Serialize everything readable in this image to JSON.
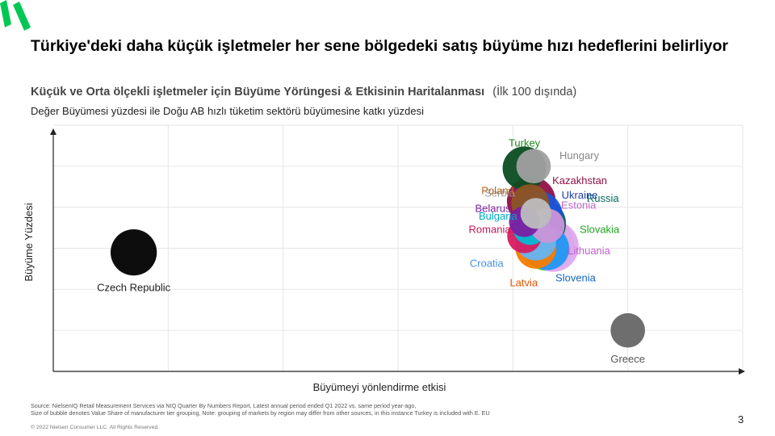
{
  "slide": {
    "title": "Türkiye'deki daha küçük işletmeler her sene bölgedeki satış büyüme hızı hedeflerini belirliyor",
    "subtitle_main": "Küçük ve Orta ölçekli işletmeler için Büyüme Yörüngesi & Etkisinin Haritalanması",
    "subtitle_note": "(İlk 100 dışında)",
    "description": "Değer Büyümesi yüzdesi ile Doğu AB hızlı tüketim sektörü büyümesine katkı yüzdesi",
    "source_line1": "Source: NielsenIQ Retail Measurement Services via NIQ Quarter By Numbers Report, Latest annual period ended Q1 2022 vs. same period year-ago,",
    "source_line2": "Size of bubble denotes Value Share of manufacturer tier grouping, Note: grouping of markets by region may differ from other sources, in this instance Turkey is included with E. EU",
    "copyright": "© 2022 Nielsen Consumer LLC. All Rights Reserved.",
    "page_number": "3",
    "logo_color": "#00c853"
  },
  "chart_data": {
    "type": "scatter",
    "xlabel": "Büyümeyi yönlendirme etkisi",
    "ylabel": "Büyüme Yüzdesi",
    "xlim": [
      0,
      6
    ],
    "ylim": [
      0,
      6
    ],
    "grid": true,
    "legend": "none",
    "points": [
      {
        "name": "Czech Republic",
        "x": 0.7,
        "y": 2.9,
        "size": 4.5,
        "color": "#000000",
        "label_color": "#222222"
      },
      {
        "name": "Greece",
        "x": 5.0,
        "y": 1.0,
        "size": 2.5,
        "color": "#666666",
        "label_color": "#555555"
      },
      {
        "name": "Latvia",
        "x": 4.2,
        "y": 3.0,
        "size": 3.5,
        "color": "#f57c00",
        "label_color": "#e65100"
      },
      {
        "name": "Lithuania",
        "x": 4.35,
        "y": 3.05,
        "size": 5.5,
        "color": "#e0a8f0",
        "label_color": "#c060d0"
      },
      {
        "name": "Slovakia",
        "x": 4.3,
        "y": 3.1,
        "size": 6.0,
        "color": "#4cd44c",
        "label_color": "#1fa41f"
      },
      {
        "name": "Romania",
        "x": 4.1,
        "y": 3.3,
        "size": 2.5,
        "color": "#d81b60",
        "label_color": "#c2185b"
      },
      {
        "name": "Croatia",
        "x": 4.2,
        "y": 3.2,
        "size": 3.5,
        "color": "#64b5f6",
        "label_color": "#4a90e2"
      },
      {
        "name": "Bulgaria",
        "x": 4.15,
        "y": 3.5,
        "size": 2.5,
        "color": "#00bcd4",
        "label_color": "#00acc1"
      },
      {
        "name": "Belarus",
        "x": 4.1,
        "y": 3.65,
        "size": 2.0,
        "color": "#7b1fa2",
        "label_color": "#7b1fa2"
      },
      {
        "name": "Estonia",
        "x": 4.3,
        "y": 3.55,
        "size": 2.5,
        "color": "#ce93d8",
        "label_color": "#ba68c8"
      },
      {
        "name": "Serbia",
        "x": 4.2,
        "y": 3.85,
        "size": 2.0,
        "color": "#bdbdbd",
        "label_color": "#9e9e9e"
      },
      {
        "name": "Poland",
        "x": 4.15,
        "y": 4.1,
        "size": 3.0,
        "color": "#8d5524",
        "label_color": "#b5651d"
      },
      {
        "name": "Slovenia",
        "x": 4.3,
        "y": 3.0,
        "size": 4.0,
        "color": "#2196f3",
        "label_color": "#1565c0"
      },
      {
        "name": "Kazakhstan",
        "x": 4.16,
        "y": 4.15,
        "size": 5.0,
        "color": "#8e1045",
        "label_color": "#8e1045"
      },
      {
        "name": "Russia",
        "x": 4.25,
        "y": 3.6,
        "size": 5.0,
        "color": "#006064",
        "label_color": "#00695c"
      },
      {
        "name": "Ukraine",
        "x": 4.22,
        "y": 3.8,
        "size": 5.0,
        "color": "#1a53d9",
        "label_color": "#1a3fa8"
      },
      {
        "name": "Hungary",
        "x": 4.18,
        "y": 5.0,
        "size": 2.5,
        "color": "#a0a0a0",
        "label_color": "#888888"
      },
      {
        "name": "Turkey",
        "x": 4.1,
        "y": 4.95,
        "size": 4.0,
        "color": "#0b4d21",
        "label_color": "#1b8a1b"
      }
    ]
  }
}
